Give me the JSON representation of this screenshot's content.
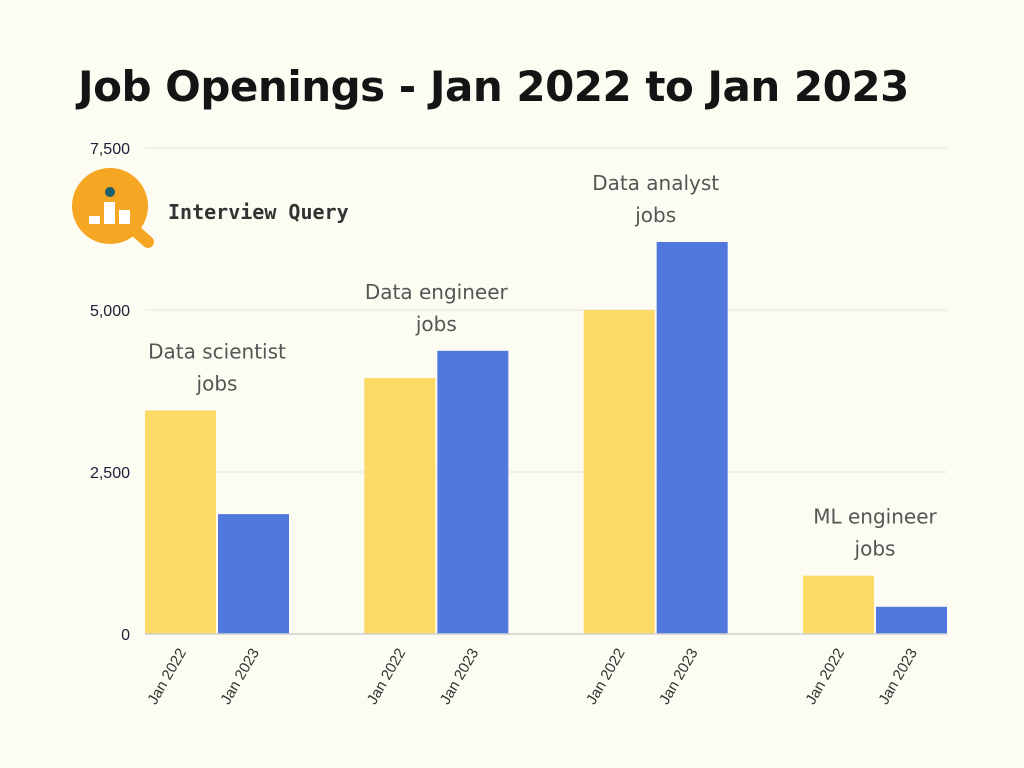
{
  "chart_data": {
    "type": "bar",
    "title": "Job Openings - Jan 2022 to Jan 2023",
    "groups": [
      "Data scientist jobs",
      "Data engineer jobs",
      "Data analyst jobs",
      "ML engineer jobs"
    ],
    "group_labels": [
      [
        "Data scientist",
        "jobs"
      ],
      [
        "Data engineer",
        "jobs"
      ],
      [
        "Data analyst",
        "jobs"
      ],
      [
        "ML engineer",
        "jobs"
      ]
    ],
    "series": [
      {
        "name": "Jan 2022",
        "color": "#fdd966",
        "values": [
          3450,
          3950,
          5000,
          900
        ]
      },
      {
        "name": "Jan 2023",
        "color": "#5078de",
        "values": [
          1850,
          4370,
          6050,
          420
        ]
      }
    ],
    "y_ticks": [
      0,
      2500,
      5000,
      7500
    ],
    "y_tick_labels": [
      "0",
      "2,500",
      "5,000",
      "7,500"
    ],
    "ylim": [
      0,
      7500
    ],
    "xlabel": "",
    "ylabel": "",
    "grid": true
  },
  "brand": {
    "name": "Interview Query",
    "icon": "magnifier-bar-chart-icon",
    "accent": "#f5a623",
    "dot_color": "#1e5f6e"
  }
}
